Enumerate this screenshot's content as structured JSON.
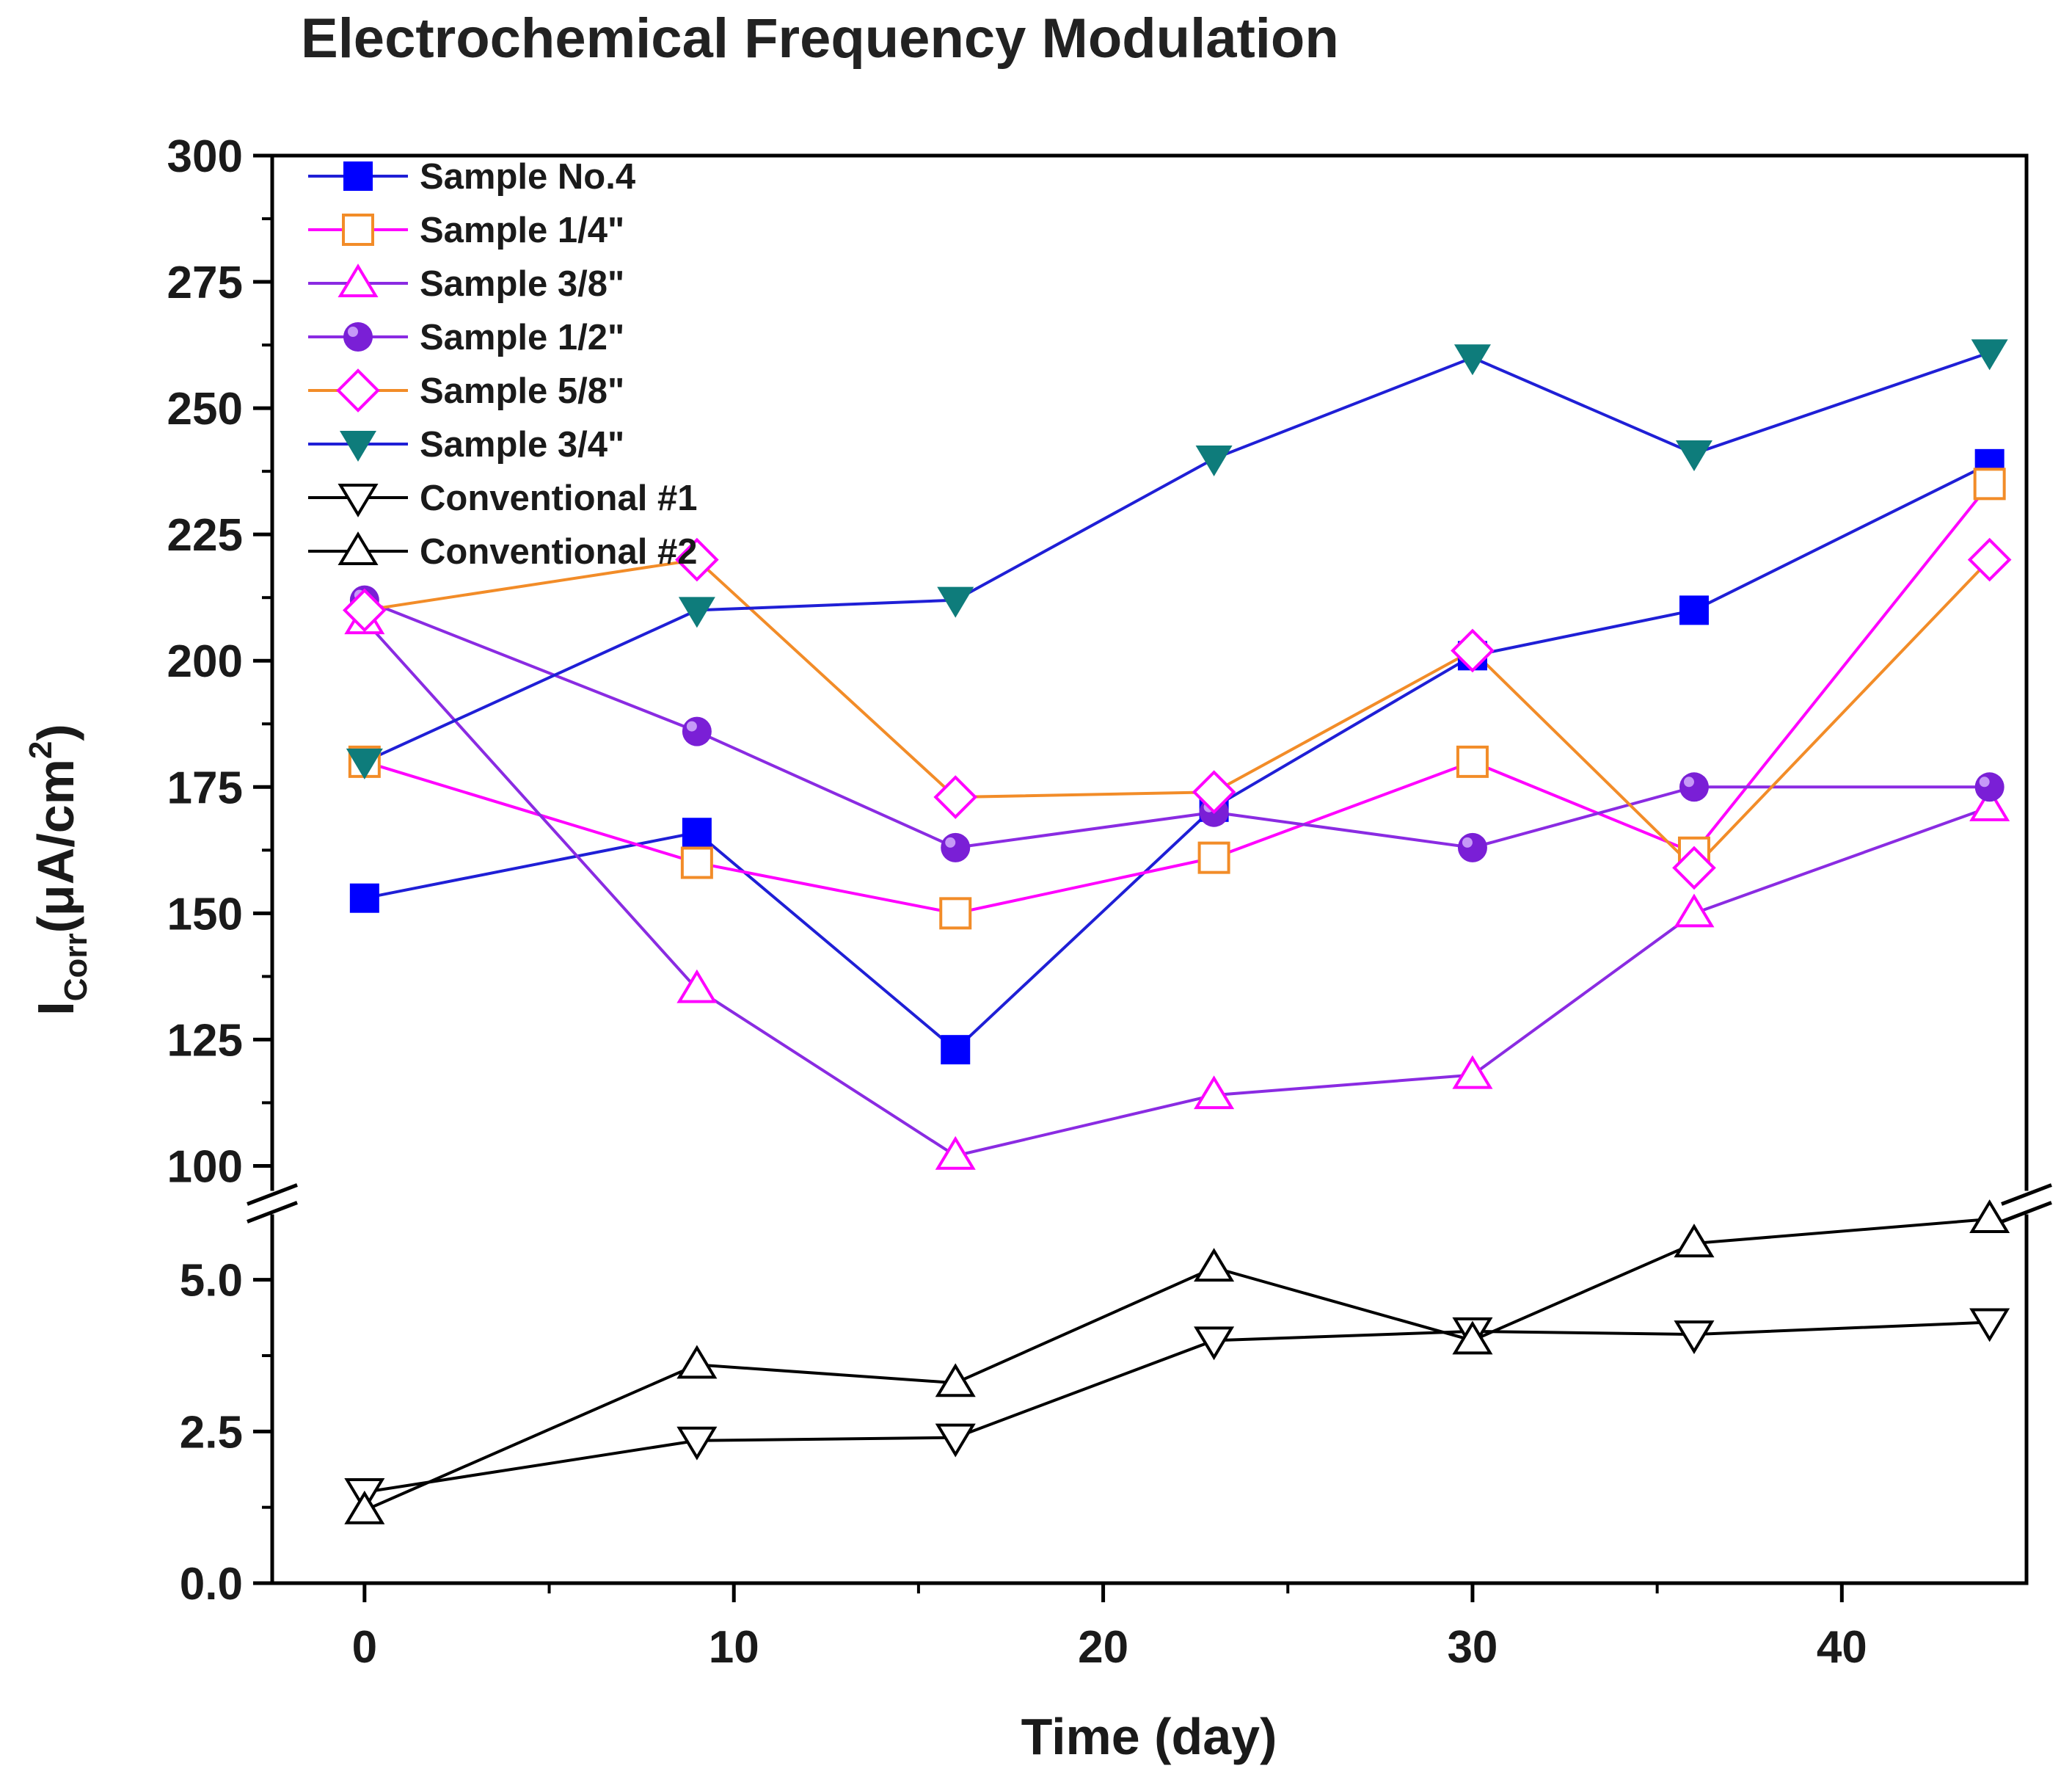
{
  "chart_data": {
    "type": "line",
    "title": "Electrochemical Frequency Modulation",
    "xlabel": "Time (day)",
    "ylabel": {
      "main": "I",
      "sub": "Corr",
      "unit_pre": "(μA/cm",
      "sup": "2",
      "unit_post": ")"
    },
    "xlim": [
      -2.5,
      45
    ],
    "x_ticks": [
      "0",
      "10",
      "20",
      "30",
      "40"
    ],
    "y_axis_broken": true,
    "ylim_upper": [
      96,
      300
    ],
    "ylim_lower": [
      0,
      6
    ],
    "y_ticks_upper": [
      "100",
      "125",
      "150",
      "175",
      "200",
      "225",
      "250",
      "275",
      "300"
    ],
    "y_ticks_lower": [
      "0.0",
      "2.5",
      "5.0"
    ],
    "legend_position": "top-left",
    "x": [
      0,
      9,
      16,
      23,
      30,
      36,
      44
    ],
    "series": [
      {
        "name": "Sample No.4",
        "line_color": "#1f1fd6",
        "marker": "square-filled",
        "marker_color": "#0000ff",
        "values": [
          153,
          166,
          123,
          171,
          201,
          210,
          239
        ]
      },
      {
        "name": "Sample 1/4\"",
        "line_color": "#ff00ff",
        "marker": "square-open",
        "marker_color": "#f28c28",
        "values": [
          180,
          160,
          150,
          161,
          180,
          162,
          235
        ]
      },
      {
        "name": "Sample 3/8\"",
        "line_color": "#8a2be2",
        "marker": "triangle-open",
        "marker_color": "#ff00ff",
        "values": [
          208,
          135,
          102,
          114,
          118,
          150,
          171
        ]
      },
      {
        "name": "Sample 1/2\"",
        "line_color": "#8a2be2",
        "marker": "circle-filled",
        "marker_color": "#7a1fd6",
        "values": [
          212,
          186,
          163,
          170,
          163,
          175,
          175
        ]
      },
      {
        "name": "Sample 5/8\"",
        "line_color": "#f28c28",
        "marker": "diamond-open",
        "marker_color": "#ff00ff",
        "values": [
          210,
          220,
          173,
          174,
          202,
          159,
          220
        ]
      },
      {
        "name": "Sample 3/4\"",
        "line_color": "#1f1fd6",
        "marker": "triangle-down-filled",
        "marker_color": "#0e7c7b",
        "values": [
          180,
          210,
          212,
          240,
          260,
          241,
          261
        ]
      },
      {
        "name": "Conventional #1",
        "line_color": "#000000",
        "marker": "triangle-down-open",
        "marker_color": "#000000",
        "values": [
          1.5,
          2.35,
          2.4,
          4.0,
          4.15,
          4.1,
          4.3
        ]
      },
      {
        "name": "Conventional #2",
        "line_color": "#000000",
        "marker": "triangle-open",
        "marker_color": "#000000",
        "values": [
          1.2,
          3.6,
          3.3,
          5.2,
          4.0,
          5.6,
          6.0
        ]
      }
    ]
  }
}
